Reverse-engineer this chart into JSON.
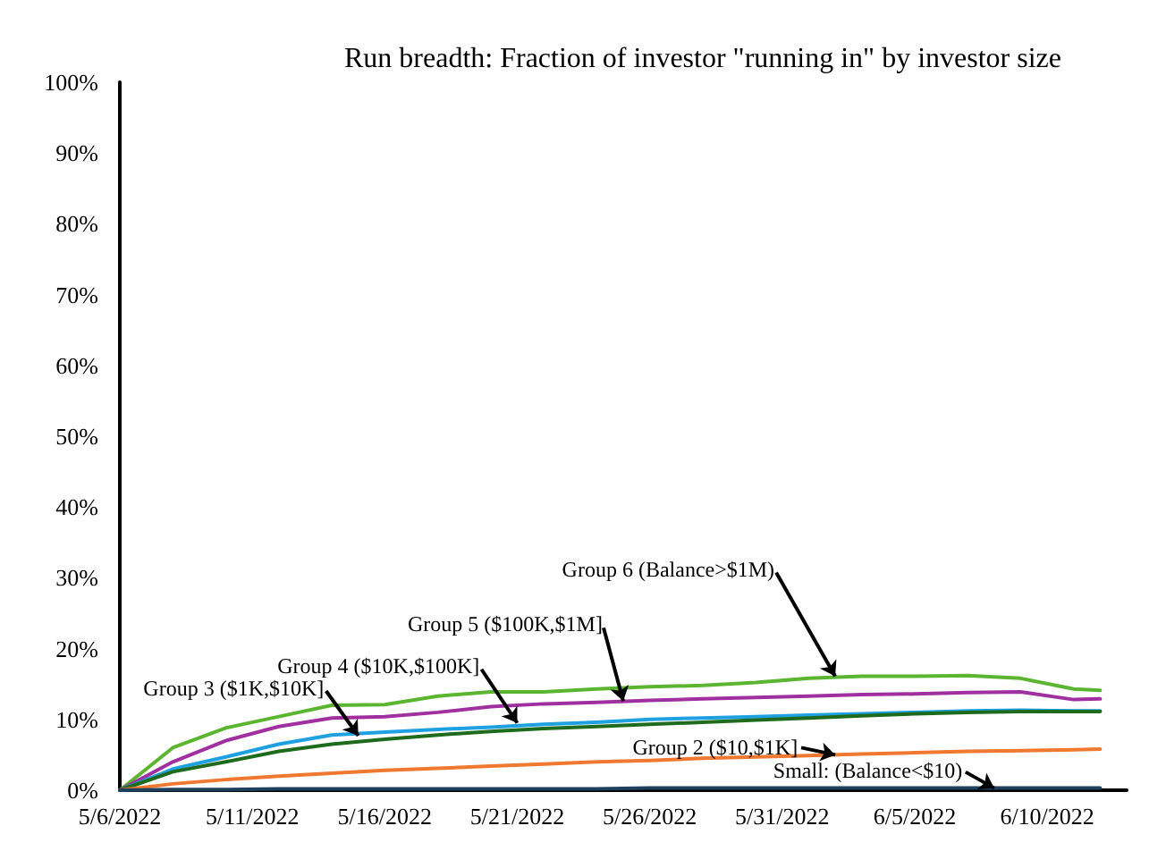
{
  "chart_data": {
    "type": "line",
    "title": "Run breadth: Fraction of investor \"running in\" by investor size",
    "x": [
      "2022-05-06",
      "2022-05-08",
      "2022-05-10",
      "2022-05-12",
      "2022-05-14",
      "2022-05-16",
      "2022-05-18",
      "2022-05-20",
      "2022-05-22",
      "2022-05-24",
      "2022-05-26",
      "2022-05-28",
      "2022-05-30",
      "2022-06-01",
      "2022-06-03",
      "2022-06-05",
      "2022-06-07",
      "2022-06-09",
      "2022-06-11",
      "2022-06-12"
    ],
    "series": [
      {
        "color": "#5bb531",
        "values": [
          0,
          6.0,
          8.8,
          10.4,
          12.0,
          12.1,
          13.3,
          13.9,
          13.9,
          14.3,
          14.6,
          14.8,
          15.2,
          15.8,
          16.1,
          16.1,
          16.2,
          15.8,
          14.3,
          14.1
        ]
      },
      {
        "color": "#a030a0",
        "values": [
          0,
          4.0,
          7.0,
          9.0,
          10.2,
          10.4,
          11.0,
          11.8,
          12.2,
          12.4,
          12.7,
          12.9,
          13.1,
          13.3,
          13.5,
          13.6,
          13.8,
          13.9,
          12.8,
          12.9
        ]
      },
      {
        "color": "#1fa0e0",
        "values": [
          0,
          3.0,
          4.7,
          6.5,
          7.8,
          8.2,
          8.6,
          8.9,
          9.3,
          9.6,
          10.0,
          10.2,
          10.4,
          10.6,
          10.8,
          11.0,
          11.2,
          11.3,
          11.2,
          11.2
        ]
      },
      {
        "color": "#1e6b1e",
        "values": [
          0,
          2.6,
          4.0,
          5.5,
          6.5,
          7.2,
          7.8,
          8.3,
          8.7,
          9.0,
          9.3,
          9.6,
          9.9,
          10.2,
          10.5,
          10.8,
          11.0,
          11.1,
          11.1,
          11.1
        ]
      },
      {
        "color": "#f07830",
        "values": [
          0,
          0.9,
          1.5,
          2.0,
          2.4,
          2.8,
          3.1,
          3.4,
          3.7,
          4.0,
          4.2,
          4.5,
          4.7,
          4.9,
          5.1,
          5.3,
          5.5,
          5.6,
          5.7,
          5.8
        ]
      },
      {
        "color": "#1f3f5f",
        "values": [
          0,
          0.1,
          0.1,
          0.2,
          0.2,
          0.2,
          0.2,
          0.2,
          0.2,
          0.2,
          0.3,
          0.3,
          0.3,
          0.3,
          0.3,
          0.3,
          0.3,
          0.3,
          0.3,
          0.3
        ]
      }
    ],
    "annotations": [
      {
        "text": "Group 6 (Balance>$1M)",
        "x": "2022-06-02",
        "y": 16.1
      },
      {
        "text": "Group 5 ($100K,$1M]",
        "x": "2022-05-25",
        "y": 12.6
      },
      {
        "text": "Group 4 ($10K,$100K]",
        "x": "2022-05-21",
        "y": 9.5
      },
      {
        "text": "Group 3 ($1K,$10K]",
        "x": "2022-05-15",
        "y": 7.7
      },
      {
        "text": "Group 2 ($10,$1K]",
        "x": "2022-06-02",
        "y": 5.0
      },
      {
        "text": "Small: (Balance<$10)",
        "x": "2022-06-08",
        "y": 0.3
      }
    ],
    "xlim": [
      "2022-05-06",
      "2022-06-13"
    ],
    "xticks": [
      {
        "value": "2022-05-06",
        "label": "5/6/2022"
      },
      {
        "value": "2022-05-11",
        "label": "5/11/2022"
      },
      {
        "value": "2022-05-16",
        "label": "5/16/2022"
      },
      {
        "value": "2022-05-21",
        "label": "5/21/2022"
      },
      {
        "value": "2022-05-26",
        "label": "5/26/2022"
      },
      {
        "value": "2022-05-31",
        "label": "5/31/2022"
      },
      {
        "value": "2022-06-05",
        "label": "6/5/2022"
      },
      {
        "value": "2022-06-10",
        "label": "6/10/2022"
      }
    ],
    "ylim": [
      0,
      100
    ],
    "yticks": [
      {
        "value": 0,
        "label": "0%"
      },
      {
        "value": 10,
        "label": "10%"
      },
      {
        "value": 20,
        "label": "20%"
      },
      {
        "value": 30,
        "label": "30%"
      },
      {
        "value": 40,
        "label": "40%"
      },
      {
        "value": 50,
        "label": "50%"
      },
      {
        "value": 60,
        "label": "60%"
      },
      {
        "value": 70,
        "label": "70%"
      },
      {
        "value": 80,
        "label": "80%"
      },
      {
        "value": 90,
        "label": "90%"
      },
      {
        "value": 100,
        "label": "100%"
      }
    ],
    "grid": false,
    "marker": "none",
    "line_style": "solid"
  }
}
